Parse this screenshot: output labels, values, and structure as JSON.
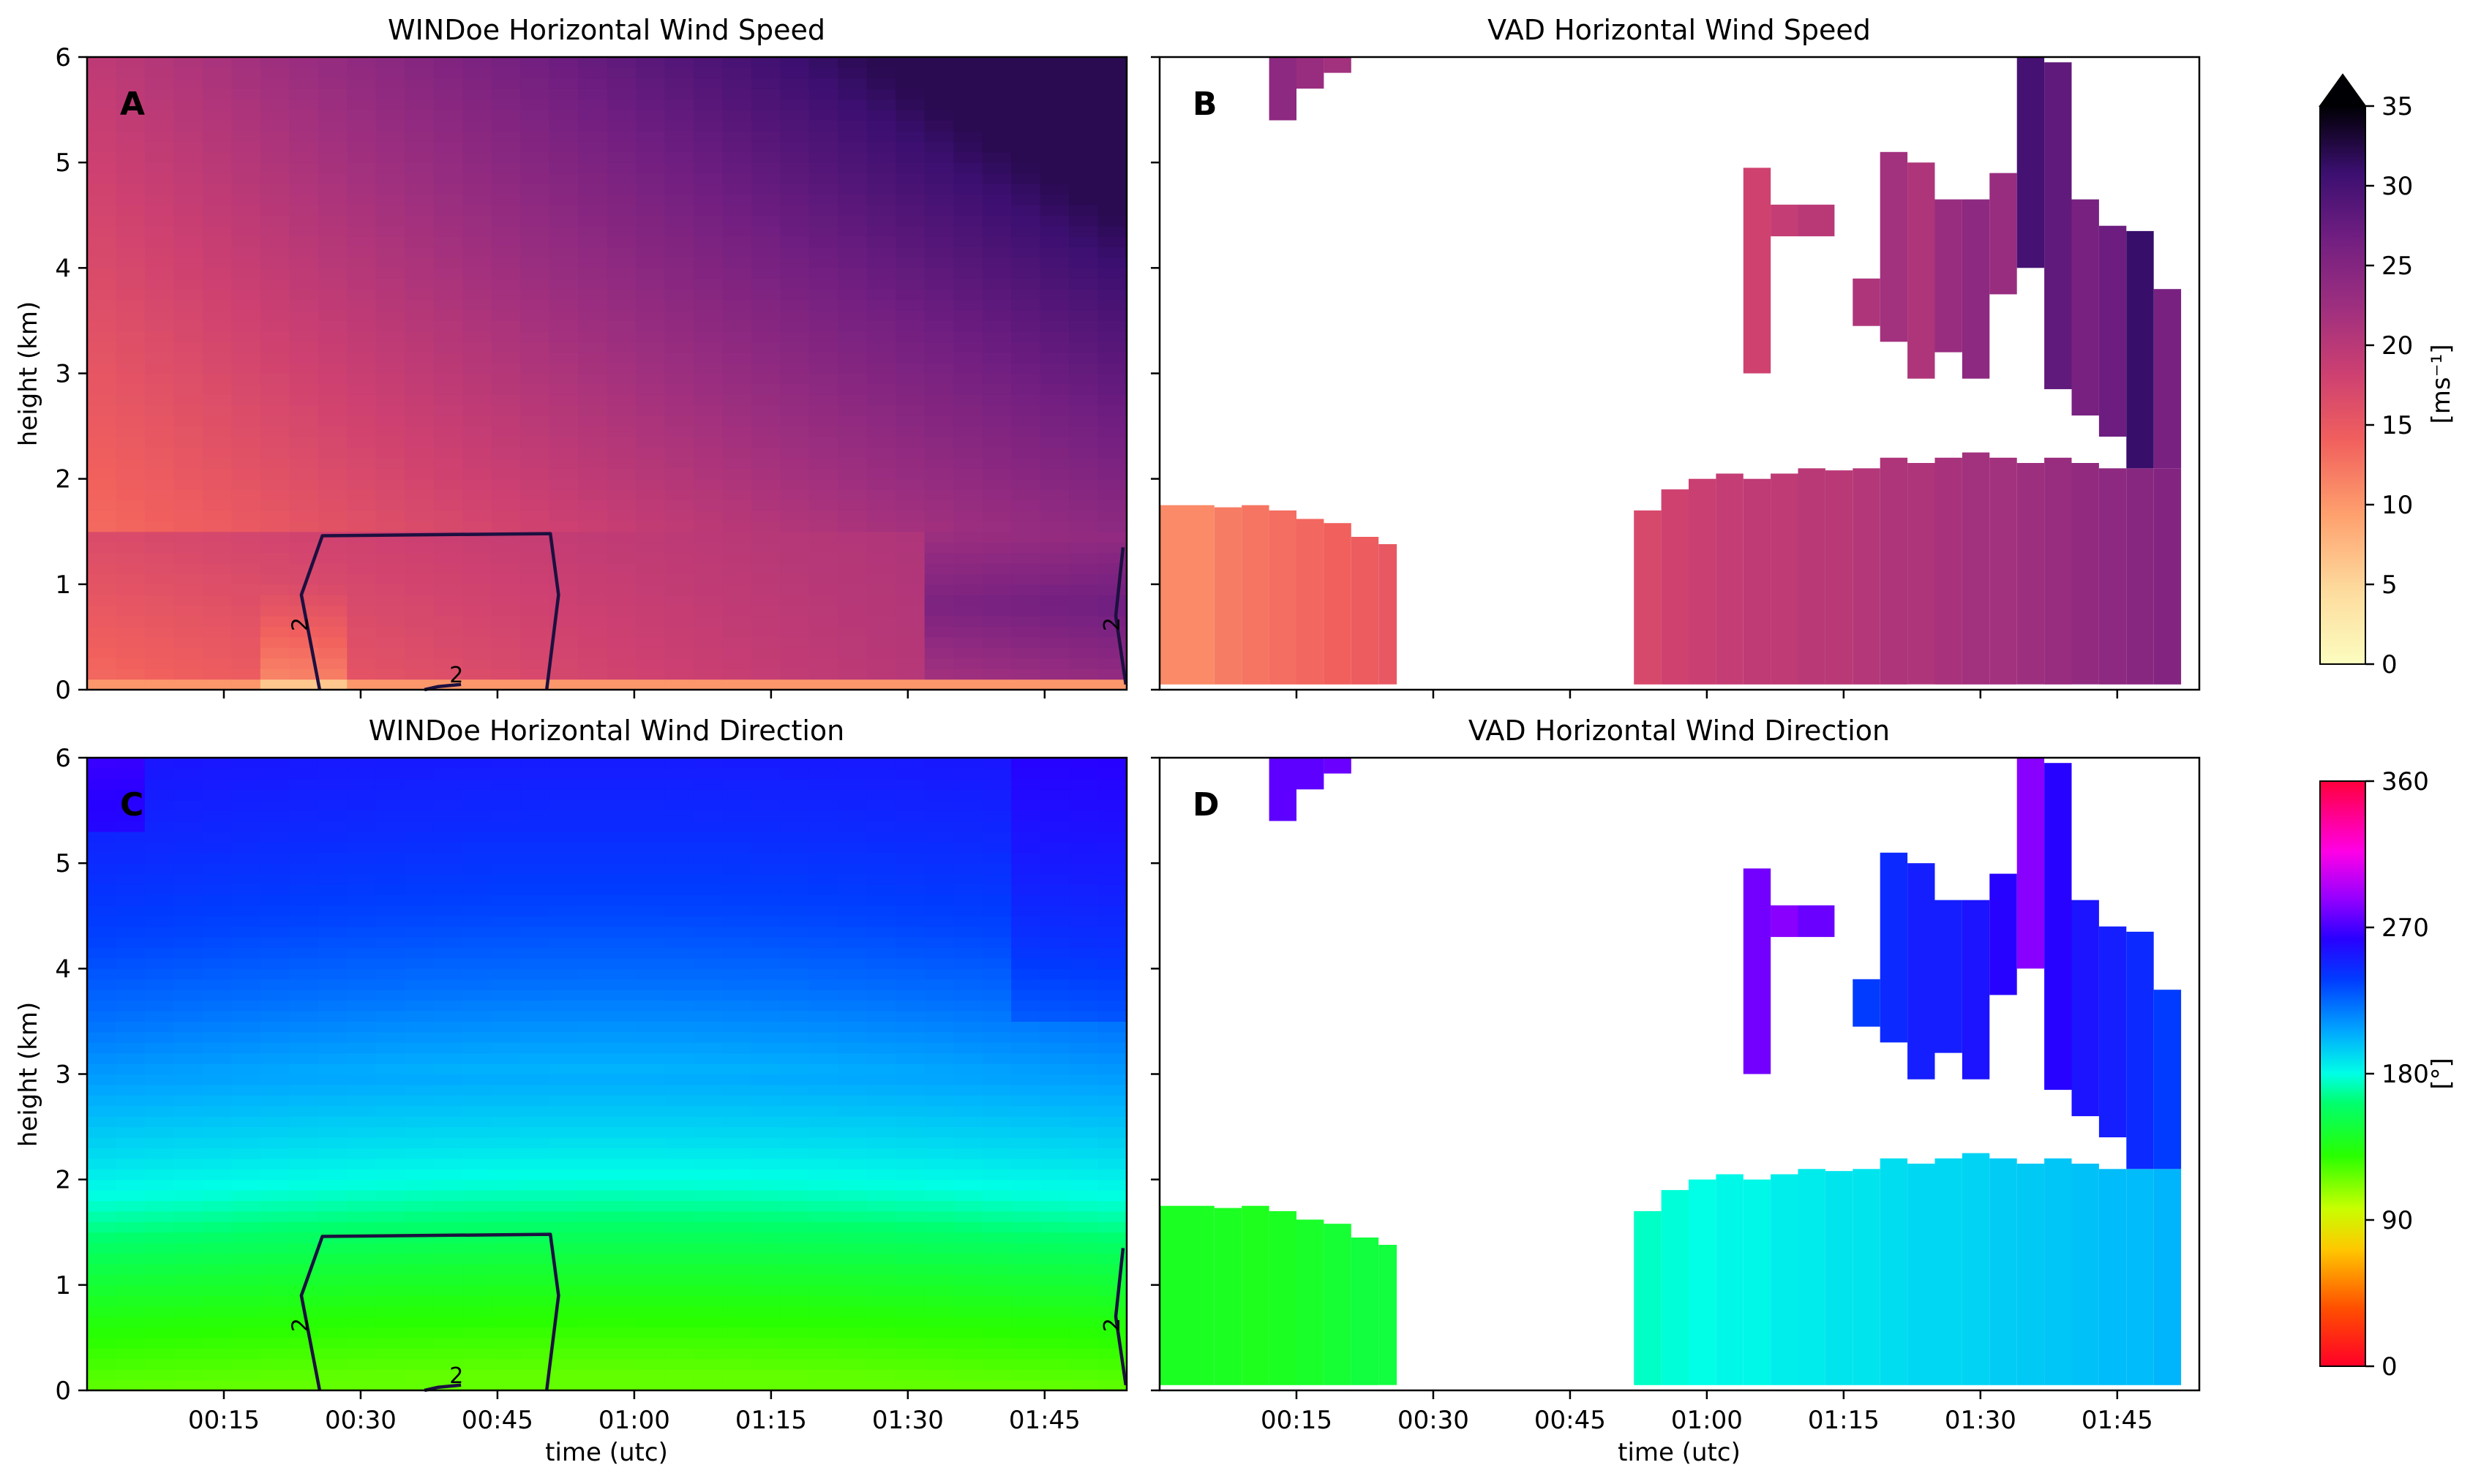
{
  "chart_data": [
    {
      "panel": "A",
      "type": "heatmap",
      "title": "WINDoe Horizontal Wind Speed",
      "xlabel": "",
      "ylabel": "height (km)",
      "xlim": [
        0,
        114
      ],
      "ylim": [
        0,
        6
      ],
      "x_ticks": [
        15,
        30,
        45,
        60,
        75,
        90,
        105
      ],
      "x_tick_labels": [],
      "y_ticks": [
        0,
        1,
        2,
        3,
        4,
        5,
        6
      ],
      "y_tick_labels": [
        "0",
        "1",
        "2",
        "3",
        "4",
        "5",
        "6"
      ],
      "variable": "horizontal wind speed",
      "colorbar": "wind_speed",
      "columns": 36,
      "profile_range_ms": [
        5,
        32
      ],
      "contour": {
        "level": "2",
        "segments": [
          {
            "pts": [
              [
                25.5,
                0.0
              ],
              [
                23.5,
                0.9
              ],
              [
                25.8,
                1.46
              ],
              [
                50.8,
                1.48
              ],
              [
                51.7,
                0.9
              ],
              [
                50.4,
                0.0
              ]
            ]
          },
          {
            "pts": [
              [
                37.0,
                0.0
              ],
              [
                38.5,
                0.03
              ],
              [
                41.0,
                0.05
              ]
            ]
          },
          {
            "pts": [
              [
                113.6,
                1.35
              ],
              [
                112.8,
                0.7
              ],
              [
                113.9,
                0.05
              ]
            ]
          }
        ]
      }
    },
    {
      "panel": "B",
      "type": "heatmap",
      "title": "VAD Horizontal Wind Speed",
      "xlabel": "",
      "ylabel": "",
      "xlim": [
        0,
        114
      ],
      "ylim": [
        0,
        6
      ],
      "x_ticks": [
        15,
        30,
        45,
        60,
        75,
        90,
        105
      ],
      "x_tick_labels": [],
      "y_ticks": [
        0,
        1,
        2,
        3,
        4,
        5,
        6
      ],
      "y_tick_labels": [],
      "variable": "horizontal wind speed",
      "colorbar": "wind_speed",
      "data_blocks_note": "retrievals present 00:00-00:26 (0.05-1.75 km), 00:52-01:52 (0.05-2.2 km), scattered upper echoes 3-6 km"
    },
    {
      "panel": "C",
      "type": "heatmap",
      "title": "WINDoe Horizontal Wind Direction",
      "xlabel": "time (utc)",
      "ylabel": "height (km)",
      "xlim": [
        0,
        114
      ],
      "ylim": [
        0,
        6
      ],
      "x_ticks": [
        15,
        30,
        45,
        60,
        75,
        90,
        105
      ],
      "x_tick_labels": [
        "00:15",
        "00:30",
        "00:45",
        "01:00",
        "01:15",
        "01:30",
        "01:45"
      ],
      "y_ticks": [
        0,
        1,
        2,
        3,
        4,
        5,
        6
      ],
      "y_tick_labels": [
        "0",
        "1",
        "2",
        "3",
        "4",
        "5",
        "6"
      ],
      "variable": "horizontal wind direction",
      "colorbar": "wind_direction",
      "profile_range_deg": [
        120,
        252
      ],
      "contour": {
        "level": "2",
        "segments": [
          {
            "pts": [
              [
                25.5,
                0.0
              ],
              [
                23.5,
                0.9
              ],
              [
                25.8,
                1.46
              ],
              [
                50.8,
                1.48
              ],
              [
                51.7,
                0.9
              ],
              [
                50.4,
                0.0
              ]
            ]
          },
          {
            "pts": [
              [
                37.0,
                0.0
              ],
              [
                38.5,
                0.03
              ],
              [
                41.0,
                0.05
              ]
            ]
          },
          {
            "pts": [
              [
                113.6,
                1.35
              ],
              [
                112.8,
                0.7
              ],
              [
                113.9,
                0.05
              ]
            ]
          }
        ]
      }
    },
    {
      "panel": "D",
      "type": "heatmap",
      "title": "VAD Horizontal Wind Direction",
      "xlabel": "time (utc)",
      "ylabel": "",
      "xlim": [
        0,
        114
      ],
      "ylim": [
        0,
        6
      ],
      "x_ticks": [
        15,
        30,
        45,
        60,
        75,
        90,
        105
      ],
      "x_tick_labels": [
        "00:15",
        "00:30",
        "00:45",
        "01:00",
        "01:15",
        "01:30",
        "01:45"
      ],
      "y_ticks": [
        0,
        1,
        2,
        3,
        4,
        5,
        6
      ],
      "y_tick_labels": [],
      "variable": "horizontal wind direction",
      "colorbar": "wind_direction"
    }
  ],
  "colorbars": {
    "wind_speed": {
      "label": "[ms⁻¹]",
      "range": [
        0,
        35
      ],
      "ticks": [
        0,
        5,
        10,
        15,
        20,
        25,
        30,
        35
      ],
      "tick_labels": [
        "0",
        "5",
        "10",
        "15",
        "20",
        "25",
        "30",
        "35"
      ],
      "extend": "max",
      "colormap": "magma_r"
    },
    "wind_direction": {
      "label": "[°]",
      "range": [
        0,
        360
      ],
      "ticks": [
        0,
        90,
        180,
        270,
        360
      ],
      "tick_labels": [
        "0",
        "90",
        "180",
        "270",
        "360"
      ],
      "colormap": "gist_rainbow"
    }
  },
  "vad_blocks": [
    {
      "t": [
        0,
        6
      ],
      "h": [
        0.05,
        1.75
      ],
      "spd": 11,
      "dir": 140
    },
    {
      "t": [
        6,
        9
      ],
      "h": [
        0.05,
        1.73
      ],
      "spd": 12,
      "dir": 140
    },
    {
      "t": [
        9,
        12
      ],
      "h": [
        0.05,
        1.75
      ],
      "spd": 12.5,
      "dir": 138
    },
    {
      "t": [
        12,
        15
      ],
      "h": [
        0.05,
        1.7
      ],
      "spd": 13,
      "dir": 140
    },
    {
      "t": [
        15,
        18
      ],
      "h": [
        0.05,
        1.62
      ],
      "spd": 13.5,
      "dir": 142
    },
    {
      "t": [
        18,
        21
      ],
      "h": [
        0.05,
        1.58
      ],
      "spd": 14,
      "dir": 145
    },
    {
      "t": [
        21,
        24
      ],
      "h": [
        0.05,
        1.45
      ],
      "spd": 14.5,
      "dir": 148
    },
    {
      "t": [
        24,
        26
      ],
      "h": [
        0.05,
        1.38
      ],
      "spd": 15,
      "dir": 148
    },
    {
      "t": [
        52,
        55
      ],
      "h": [
        0.05,
        1.7
      ],
      "spd": 17,
      "dir": 175
    },
    {
      "t": [
        55,
        58
      ],
      "h": [
        0.05,
        1.9
      ],
      "spd": 18,
      "dir": 178
    },
    {
      "t": [
        58,
        61
      ],
      "h": [
        0.05,
        2.0
      ],
      "spd": 18.5,
      "dir": 180
    },
    {
      "t": [
        61,
        64
      ],
      "h": [
        0.05,
        2.05
      ],
      "spd": 19,
      "dir": 182
    },
    {
      "t": [
        64,
        67
      ],
      "h": [
        0.05,
        2.0
      ],
      "spd": 19.5,
      "dir": 182
    },
    {
      "t": [
        67,
        70
      ],
      "h": [
        0.05,
        2.05
      ],
      "spd": 19.5,
      "dir": 185
    },
    {
      "t": [
        70,
        73
      ],
      "h": [
        0.05,
        2.1
      ],
      "spd": 20,
      "dir": 186
    },
    {
      "t": [
        73,
        76
      ],
      "h": [
        0.05,
        2.08
      ],
      "spd": 20,
      "dir": 188
    },
    {
      "t": [
        76,
        79
      ],
      "h": [
        0.05,
        2.1
      ],
      "spd": 20.5,
      "dir": 188
    },
    {
      "t": [
        79,
        82
      ],
      "h": [
        0.05,
        2.2
      ],
      "spd": 21,
      "dir": 190
    },
    {
      "t": [
        82,
        85
      ],
      "h": [
        0.05,
        2.15
      ],
      "spd": 21,
      "dir": 192
    },
    {
      "t": [
        85,
        88
      ],
      "h": [
        0.05,
        2.2
      ],
      "spd": 21.5,
      "dir": 192
    },
    {
      "t": [
        88,
        91
      ],
      "h": [
        0.05,
        2.25
      ],
      "spd": 22,
      "dir": 193
    },
    {
      "t": [
        91,
        94
      ],
      "h": [
        0.05,
        2.2
      ],
      "spd": 22,
      "dir": 195
    },
    {
      "t": [
        94,
        97
      ],
      "h": [
        0.05,
        2.15
      ],
      "spd": 22.5,
      "dir": 196
    },
    {
      "t": [
        97,
        100
      ],
      "h": [
        0.05,
        2.2
      ],
      "spd": 23,
      "dir": 197
    },
    {
      "t": [
        100,
        103
      ],
      "h": [
        0.05,
        2.15
      ],
      "spd": 23.5,
      "dir": 198
    },
    {
      "t": [
        103,
        106
      ],
      "h": [
        0.05,
        2.1
      ],
      "spd": 24,
      "dir": 200
    },
    {
      "t": [
        106,
        109
      ],
      "h": [
        0.05,
        2.1
      ],
      "spd": 24.5,
      "dir": 200
    },
    {
      "t": [
        109,
        112
      ],
      "h": [
        0.05,
        2.1
      ],
      "spd": 25,
      "dir": 202
    },
    {
      "t": [
        12,
        15
      ],
      "h": [
        5.4,
        6.0
      ],
      "spd": 24,
      "dir": 275
    },
    {
      "t": [
        15,
        18
      ],
      "h": [
        5.7,
        6.0
      ],
      "spd": 23,
      "dir": 275
    },
    {
      "t": [
        18,
        21
      ],
      "h": [
        5.85,
        6.0
      ],
      "spd": 22,
      "dir": 278
    },
    {
      "t": [
        64,
        67
      ],
      "h": [
        3.0,
        4.95
      ],
      "spd": 18,
      "dir": 280
    },
    {
      "t": [
        67,
        70
      ],
      "h": [
        4.3,
        4.6
      ],
      "spd": 19,
      "dir": 285
    },
    {
      "t": [
        70,
        74
      ],
      "h": [
        4.3,
        4.6
      ],
      "spd": 20,
      "dir": 278
    },
    {
      "t": [
        76,
        79
      ],
      "h": [
        3.45,
        3.9
      ],
      "spd": 21,
      "dir": 238
    },
    {
      "t": [
        79,
        82
      ],
      "h": [
        3.3,
        5.1
      ],
      "spd": 22,
      "dir": 245
    },
    {
      "t": [
        82,
        85
      ],
      "h": [
        2.95,
        5.0
      ],
      "spd": 21,
      "dir": 250
    },
    {
      "t": [
        85,
        88
      ],
      "h": [
        3.2,
        4.65
      ],
      "spd": 23,
      "dir": 250
    },
    {
      "t": [
        88,
        91
      ],
      "h": [
        2.95,
        4.65
      ],
      "spd": 24,
      "dir": 255
    },
    {
      "t": [
        91,
        94
      ],
      "h": [
        3.75,
        4.9
      ],
      "spd": 23,
      "dir": 262
    },
    {
      "t": [
        94,
        97
      ],
      "h": [
        4.0,
        6.0
      ],
      "spd": 30,
      "dir": 285
    },
    {
      "t": [
        97,
        100
      ],
      "h": [
        2.85,
        5.95
      ],
      "spd": 28,
      "dir": 262
    },
    {
      "t": [
        100,
        103
      ],
      "h": [
        2.6,
        4.65
      ],
      "spd": 26,
      "dir": 255
    },
    {
      "t": [
        103,
        106
      ],
      "h": [
        2.4,
        4.4
      ],
      "spd": 27,
      "dir": 250
    },
    {
      "t": [
        106,
        109
      ],
      "h": [
        2.1,
        4.35
      ],
      "spd": 31,
      "dir": 245
    },
    {
      "t": [
        109,
        112
      ],
      "h": [
        2.1,
        3.8
      ],
      "spd": 26,
      "dir": 238
    }
  ]
}
